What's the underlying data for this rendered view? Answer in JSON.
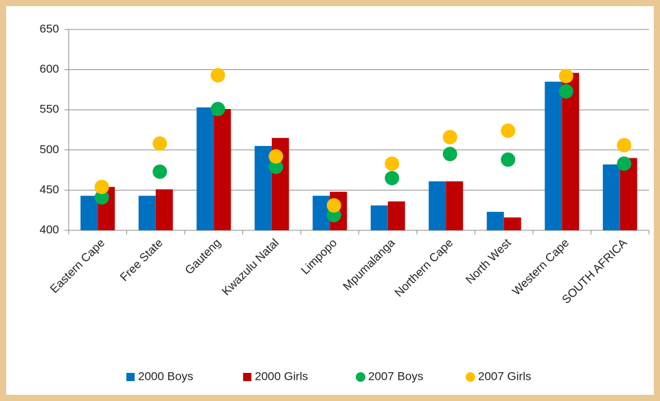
{
  "chart_data": {
    "type": "bar",
    "categories": [
      "Eastern Cape",
      "Free State",
      "Gauteng",
      "Kwazulu Natal",
      "Limpopo",
      "Mpumalanga",
      "Northern Cape",
      "North West",
      "Western Cape",
      "SOUTH AFRICA"
    ],
    "series": [
      {
        "name": "2000 Boys",
        "color": "#0070c0",
        "marker": "bar",
        "values": [
          443,
          443,
          553,
          505,
          443,
          431,
          461,
          423,
          585,
          482
        ]
      },
      {
        "name": "2000 Girls",
        "color": "#c00000",
        "marker": "bar",
        "values": [
          454,
          451,
          551,
          515,
          448,
          436,
          461,
          416,
          596,
          490
        ]
      },
      {
        "name": "2007 Boys",
        "color": "#00b050",
        "marker": "circle",
        "values": [
          441,
          473,
          551,
          479,
          419,
          465,
          495,
          488,
          573,
          483
        ]
      },
      {
        "name": "2007 Girls",
        "color": "#ffc000",
        "marker": "circle",
        "values": [
          454,
          508,
          593,
          492,
          431,
          483,
          516,
          524,
          592,
          506
        ]
      }
    ],
    "ylim": [
      400,
      650
    ],
    "yticks": [
      400,
      450,
      500,
      550,
      600,
      650
    ],
    "grid": true,
    "legend": "bottom"
  }
}
